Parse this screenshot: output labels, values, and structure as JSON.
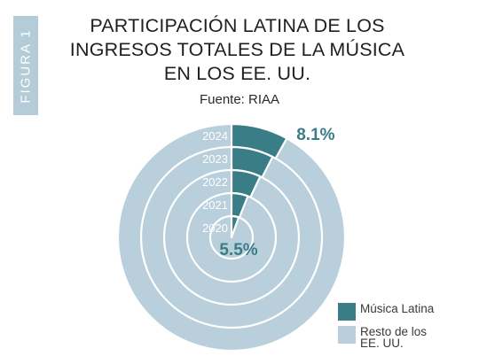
{
  "figure_tab": "FIGURA 1",
  "title_lines": [
    "PARTICIPACIÓN LATINA DE LOS",
    "INGRESOS TOTALES DE LA MÚSICA",
    "EN LOS EE. UU."
  ],
  "source": "Fuente: RIAA",
  "colors": {
    "latin": "#3b7d86",
    "rest": "#b9d0dc",
    "tab": "#b4cbd8"
  },
  "chart_data": {
    "type": "pie",
    "style": "concentric-rings",
    "categories": [
      "2020",
      "2021",
      "2022",
      "2023",
      "2024"
    ],
    "series": [
      {
        "name": "Música Latina",
        "values": [
          5.5,
          6.0,
          7.0,
          7.5,
          8.1
        ]
      },
      {
        "name": "Resto de los EE. UU.",
        "values": [
          94.5,
          94.0,
          93.0,
          92.5,
          91.9
        ]
      }
    ],
    "annotations": [
      {
        "year": "2024",
        "text": "8.1%"
      },
      {
        "year": "2020",
        "text": "5.5%"
      }
    ],
    "legend_position": "bottom-right"
  },
  "legend": [
    {
      "label": "Música Latina",
      "color": "#3b7d86"
    },
    {
      "label_lines": [
        "Resto de los",
        "EE. UU."
      ],
      "color": "#b9d0dc"
    }
  ]
}
